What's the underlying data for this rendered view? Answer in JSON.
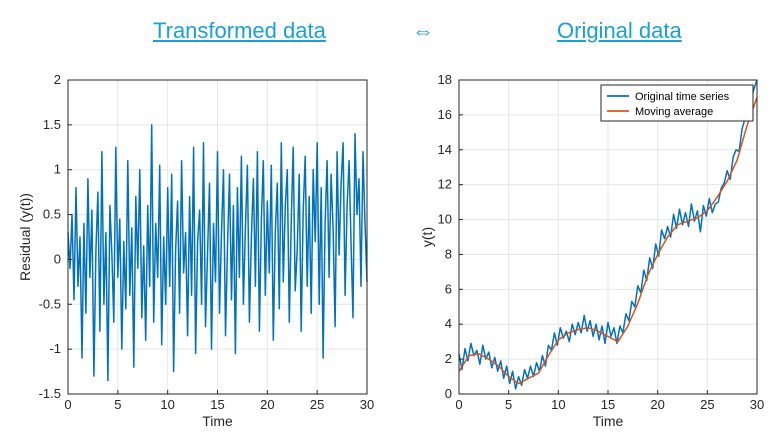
{
  "titles": {
    "left": "Transformed data",
    "arrow": "⇔",
    "right": "Original data"
  },
  "colors": {
    "heading": "#1aa0d8",
    "series1": "#0072BD",
    "series2": "#D95319",
    "grid": "#e6e6e6",
    "axis": "#262626"
  },
  "chart_data": [
    {
      "type": "line",
      "xlabel": "Time",
      "ylabel": "Residual (y(t))",
      "xlim": [
        0,
        30
      ],
      "ylim": [
        -1.5,
        2
      ],
      "xticks": [
        0,
        5,
        10,
        15,
        20,
        25,
        30
      ],
      "yticks": [
        -1.5,
        -1,
        -0.5,
        0,
        0.5,
        1,
        1.5,
        2
      ],
      "ytick_labels": [
        "-1.5",
        "-1",
        "-0.5",
        "0",
        "0.5",
        "1",
        "1.5",
        "2"
      ],
      "grid": true,
      "series": [
        {
          "color": "#0072BD",
          "x": [
            0.0,
            0.2,
            0.4,
            0.6,
            0.8,
            1.0,
            1.2,
            1.4,
            1.6,
            1.8,
            2.0,
            2.2,
            2.4,
            2.6,
            2.8,
            3.0,
            3.2,
            3.4,
            3.6,
            3.8,
            4.0,
            4.2,
            4.4,
            4.6,
            4.8,
            5.0,
            5.2,
            5.4,
            5.6,
            5.8,
            6.0,
            6.2,
            6.4,
            6.6,
            6.8,
            7.0,
            7.2,
            7.4,
            7.6,
            7.8,
            8.0,
            8.2,
            8.4,
            8.6,
            8.8,
            9.0,
            9.2,
            9.4,
            9.6,
            9.8,
            10.0,
            10.2,
            10.4,
            10.6,
            10.8,
            11.0,
            11.2,
            11.4,
            11.6,
            11.8,
            12.0,
            12.2,
            12.4,
            12.6,
            12.8,
            13.0,
            13.2,
            13.4,
            13.6,
            13.8,
            14.0,
            14.2,
            14.4,
            14.6,
            14.8,
            15.0,
            15.2,
            15.4,
            15.6,
            15.8,
            16.0,
            16.2,
            16.4,
            16.6,
            16.8,
            17.0,
            17.2,
            17.4,
            17.6,
            17.8,
            18.0,
            18.2,
            18.4,
            18.6,
            18.8,
            19.0,
            19.2,
            19.4,
            19.6,
            19.8,
            20.0,
            20.2,
            20.4,
            20.6,
            20.8,
            21.0,
            21.2,
            21.4,
            21.6,
            21.8,
            22.0,
            22.2,
            22.4,
            22.6,
            22.8,
            23.0,
            23.2,
            23.4,
            23.6,
            23.8,
            24.0,
            24.2,
            24.4,
            24.6,
            24.8,
            25.0,
            25.2,
            25.4,
            25.6,
            25.8,
            26.0,
            26.2,
            26.4,
            26.6,
            26.8,
            27.0,
            27.2,
            27.4,
            27.6,
            27.8,
            28.0,
            28.2,
            28.4,
            28.6,
            28.8,
            29.0,
            29.2,
            29.4,
            29.6,
            29.8,
            30.0
          ],
          "y": [
            0.3,
            -0.1,
            0.5,
            -0.45,
            0.8,
            -0.3,
            0.25,
            -1.1,
            0.4,
            -0.6,
            0.9,
            -0.2,
            0.55,
            -1.3,
            0.1,
            0.75,
            -0.8,
            1.2,
            -0.5,
            0.3,
            -1.35,
            0.6,
            0.05,
            -0.7,
            1.25,
            -0.2,
            0.45,
            -1.0,
            0.2,
            -0.55,
            1.1,
            -0.4,
            0.35,
            -1.2,
            0.7,
            -0.1,
            1.0,
            -0.65,
            0.15,
            -0.9,
            0.6,
            -0.3,
            1.5,
            -0.7,
            0.4,
            -0.2,
            1.05,
            -0.95,
            0.25,
            -0.5,
            0.8,
            -0.3,
            0.95,
            -1.25,
            0.1,
            0.65,
            -0.6,
            1.1,
            -0.15,
            0.3,
            -0.85,
            0.7,
            -0.4,
            1.25,
            -1.05,
            0.2,
            0.55,
            -0.5,
            1.3,
            -0.75,
            0.05,
            0.85,
            -1.0,
            0.4,
            -0.25,
            1.2,
            -0.6,
            0.3,
            1.0,
            -0.85,
            0.15,
            0.95,
            -0.45,
            0.6,
            -1.05,
            0.8,
            -0.2,
            1.15,
            -0.5,
            0.35,
            1.05,
            -0.7,
            0.25,
            0.9,
            -0.3,
            1.2,
            -0.8,
            0.45,
            1.1,
            -0.4,
            0.65,
            -0.15,
            1.05,
            -0.9,
            0.3,
            0.85,
            -0.55,
            1.3,
            -0.25,
            0.6,
            1.0,
            -0.7,
            0.45,
            1.25,
            -0.35,
            0.1,
            0.95,
            -0.8,
            0.55,
            1.15,
            -0.3,
            0.7,
            -0.6,
            1.0,
            0.2,
            1.3,
            -0.5,
            0.8,
            -1.1,
            0.4,
            1.1,
            -0.2,
            0.95,
            0.35,
            -0.75,
            1.2,
            0.05,
            0.85,
            1.3,
            -0.4,
            0.6,
            1.1,
            0.15,
            -0.65,
            1.4,
            0.5,
            0.9,
            -0.3,
            1.2,
            0.4,
            -0.25
          ]
        }
      ]
    },
    {
      "type": "line",
      "xlabel": "Time",
      "ylabel": "y(t)",
      "xlim": [
        0,
        30
      ],
      "ylim": [
        0,
        18
      ],
      "xticks": [
        0,
        5,
        10,
        15,
        20,
        25,
        30
      ],
      "yticks": [
        0,
        2,
        4,
        6,
        8,
        10,
        12,
        14,
        16,
        18
      ],
      "ytick_labels": [
        "0",
        "2",
        "4",
        "6",
        "8",
        "10",
        "12",
        "14",
        "16",
        "18"
      ],
      "grid": true,
      "legend_placement": "top-right",
      "series": [
        {
          "name": "Original time series",
          "color": "#0072BD",
          "x": [
            0.0,
            0.3,
            0.6,
            0.9,
            1.2,
            1.5,
            1.8,
            2.1,
            2.4,
            2.7,
            3.0,
            3.3,
            3.6,
            3.9,
            4.2,
            4.5,
            4.8,
            5.1,
            5.4,
            5.7,
            6.0,
            6.3,
            6.6,
            6.9,
            7.2,
            7.5,
            7.8,
            8.1,
            8.4,
            8.7,
            9.0,
            9.3,
            9.6,
            9.9,
            10.2,
            10.5,
            10.8,
            11.1,
            11.4,
            11.7,
            12.0,
            12.3,
            12.6,
            12.9,
            13.2,
            13.5,
            13.8,
            14.1,
            14.4,
            14.7,
            15.0,
            15.3,
            15.6,
            15.9,
            16.2,
            16.5,
            16.8,
            17.1,
            17.4,
            17.7,
            18.0,
            18.3,
            18.6,
            18.9,
            19.2,
            19.5,
            19.8,
            20.1,
            20.4,
            20.7,
            21.0,
            21.3,
            21.6,
            21.9,
            22.2,
            22.5,
            22.8,
            23.1,
            23.4,
            23.7,
            24.0,
            24.3,
            24.6,
            24.9,
            25.2,
            25.5,
            25.8,
            26.1,
            26.4,
            26.7,
            27.0,
            27.3,
            27.6,
            27.9,
            28.2,
            28.5,
            28.8,
            29.1,
            29.4,
            29.7,
            30.0
          ],
          "y": [
            2.3,
            1.4,
            2.6,
            1.9,
            2.9,
            2.2,
            2.5,
            1.7,
            2.8,
            2.0,
            2.4,
            1.5,
            2.1,
            1.3,
            1.9,
            0.9,
            1.6,
            0.6,
            1.3,
            0.3,
            1.0,
            0.5,
            1.4,
            0.9,
            1.6,
            1.0,
            1.8,
            1.3,
            2.2,
            1.6,
            2.8,
            2.5,
            3.5,
            2.8,
            3.8,
            3.2,
            3.6,
            3.0,
            4.0,
            3.4,
            4.1,
            3.5,
            4.5,
            3.6,
            4.2,
            3.3,
            4.0,
            3.1,
            3.9,
            2.9,
            4.1,
            3.3,
            3.8,
            2.9,
            3.9,
            3.5,
            4.6,
            4.2,
            5.3,
            5.0,
            6.2,
            5.8,
            7.1,
            6.5,
            7.8,
            7.2,
            8.6,
            7.9,
            9.4,
            8.9,
            9.6,
            9.0,
            10.3,
            9.5,
            10.6,
            9.7,
            10.4,
            9.6,
            10.9,
            9.9,
            10.5,
            9.3,
            10.8,
            10.2,
            11.2,
            10.4,
            10.9,
            11.0,
            11.8,
            12.1,
            12.8,
            12.3,
            13.6,
            14.0,
            13.9,
            15.2,
            15.8,
            16.4,
            16.8,
            17.5,
            18.0
          ]
        },
        {
          "name": "Moving average",
          "color": "#D95319",
          "x": [
            0.0,
            1,
            2,
            3,
            4,
            5,
            6,
            7,
            8,
            9,
            10,
            11,
            12,
            13,
            14,
            15,
            16,
            17,
            18,
            19,
            20,
            21,
            22,
            23,
            24,
            25,
            26,
            27,
            28,
            29,
            30
          ],
          "y": [
            1.3,
            2.2,
            2.3,
            2.0,
            1.6,
            1.0,
            0.6,
            0.9,
            1.2,
            2.2,
            3.1,
            3.5,
            3.7,
            3.8,
            3.6,
            3.3,
            3.0,
            3.9,
            5.2,
            6.8,
            8.0,
            9.0,
            9.7,
            9.9,
            10.1,
            10.5,
            11.3,
            12.2,
            13.4,
            15.4,
            17.0
          ]
        }
      ]
    }
  ]
}
